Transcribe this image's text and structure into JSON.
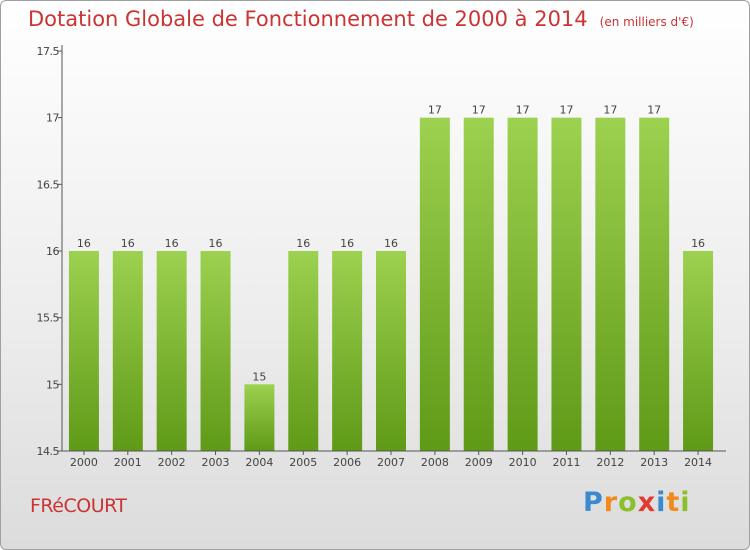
{
  "header": {
    "title": "Dotation Globale de Fonctionnement de 2000 à 2014",
    "unit": "(en milliers d'€)"
  },
  "footer": {
    "commune": "FRéCOURT",
    "logo_letters": [
      "P",
      "r",
      "o",
      "x",
      "i",
      "t",
      "i"
    ],
    "logo_colors": [
      "#3a8ad0",
      "#f08a1c",
      "#8cbf2a",
      "#e23a2c",
      "#3a8ad0",
      "#f08a1c",
      "#8cbf2a"
    ]
  },
  "colors": {
    "bar_top": "#9dd150",
    "bar_bottom": "#5f9a17",
    "axis": "#555555",
    "grid": "#cfcfcf",
    "label": "#444444"
  },
  "chart_data": {
    "type": "bar",
    "title": "Dotation Globale de Fonctionnement de 2000 à 2014",
    "subtitle": "(en milliers d'€)",
    "xlabel": "",
    "ylabel": "",
    "categories": [
      "2000",
      "2001",
      "2002",
      "2003",
      "2004",
      "2005",
      "2006",
      "2007",
      "2008",
      "2009",
      "2010",
      "2011",
      "2012",
      "2013",
      "2014"
    ],
    "values": [
      16,
      16,
      16,
      16,
      15,
      16,
      16,
      16,
      17,
      17,
      17,
      17,
      17,
      17,
      16
    ],
    "data_labels": [
      "16",
      "16",
      "16",
      "16",
      "15",
      "16",
      "16",
      "16",
      "17",
      "17",
      "17",
      "17",
      "17",
      "17",
      "16"
    ],
    "ylim": [
      14.5,
      17.5
    ],
    "yticks": [
      14.5,
      15,
      15.5,
      16,
      16.5,
      17,
      17.5
    ],
    "ytick_labels": [
      "14.5",
      "15",
      "15.5",
      "16",
      "16.5",
      "17",
      "17.5"
    ],
    "grid": false,
    "legend": "none"
  }
}
